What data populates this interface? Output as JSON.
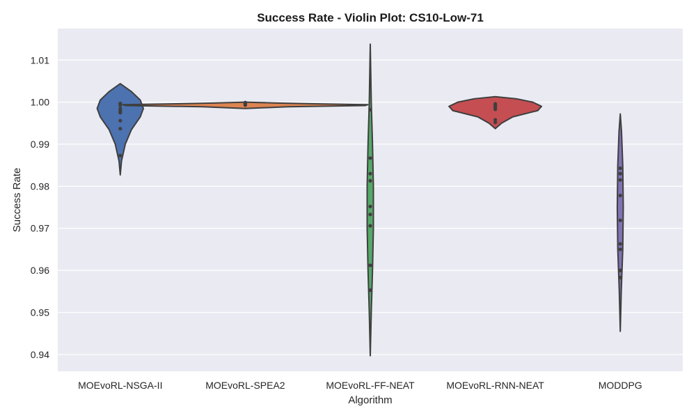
{
  "chart_data": {
    "type": "violin",
    "title": "Success Rate - Violin Plot: CS10-Low-71",
    "xlabel": "Algorithm",
    "ylabel": "Success Rate",
    "ylim": [
      0.936,
      1.0175
    ],
    "yticks": [
      0.94,
      0.95,
      0.96,
      0.97,
      0.98,
      0.99,
      1.0,
      1.01
    ],
    "ytick_labels": [
      "0.94",
      "0.95",
      "0.96",
      "0.97",
      "0.98",
      "0.99",
      "1.00",
      "1.01"
    ],
    "grid": true,
    "background": "#eaeaf2",
    "categories": [
      "MOEvoRL-NSGA-II",
      "MOEvoRL-SPEA2",
      "MOEvoRL-FF-NEAT",
      "MOEvoRL-RNN-NEAT",
      "MODDPG"
    ],
    "series": [
      {
        "color": "#4c72b0",
        "range": [
          0.9827,
          1.0044
        ],
        "points": [
          0.9997,
          0.9993,
          0.9985,
          0.998,
          0.9977,
          0.9975,
          0.9956,
          0.9937,
          0.9873
        ],
        "profile": [
          [
            0.9827,
            0.0
          ],
          [
            0.986,
            0.01
          ],
          [
            0.99,
            0.04
          ],
          [
            0.9935,
            0.09
          ],
          [
            0.9965,
            0.16
          ],
          [
            0.9985,
            0.185
          ],
          [
            1.0005,
            0.16
          ],
          [
            1.0025,
            0.09
          ],
          [
            1.0044,
            0.0
          ]
        ]
      },
      {
        "color": "#dd8452",
        "range": [
          0.9985,
          1.0
        ],
        "points": [
          0.9999,
          0.9997,
          0.9996,
          0.9994,
          0.9993
        ],
        "profile": [
          [
            0.9985,
            0.0
          ],
          [
            0.9989,
            0.34
          ],
          [
            0.9992,
            0.96
          ],
          [
            0.9994,
            0.98
          ],
          [
            0.9996,
            0.55
          ],
          [
            0.9998,
            0.25
          ],
          [
            1.0,
            0.0
          ]
        ]
      },
      {
        "color": "#55a868",
        "range": [
          0.9397,
          1.0138
        ],
        "points": [
          0.9982,
          0.9867,
          0.983,
          0.9813,
          0.9752,
          0.9733,
          0.9706,
          0.9612,
          0.9553
        ],
        "profile": [
          [
            0.9397,
            0.0
          ],
          [
            0.95,
            0.008
          ],
          [
            0.96,
            0.018
          ],
          [
            0.97,
            0.025
          ],
          [
            0.98,
            0.025
          ],
          [
            0.99,
            0.018
          ],
          [
            1.0,
            0.008
          ],
          [
            1.0138,
            0.0
          ]
        ]
      },
      {
        "color": "#c44e52",
        "range": [
          0.9937,
          1.0013
        ],
        "points": [
          0.9996,
          0.9993,
          0.999,
          0.9987,
          0.9983,
          0.9958,
          0.9952
        ],
        "profile": [
          [
            0.9937,
            0.0
          ],
          [
            0.995,
            0.05
          ],
          [
            0.9965,
            0.14
          ],
          [
            0.998,
            0.34
          ],
          [
            0.999,
            0.37
          ],
          [
            1.0,
            0.3
          ],
          [
            1.0008,
            0.17
          ],
          [
            1.0013,
            0.0
          ]
        ]
      },
      {
        "color": "#8172b3",
        "range": [
          0.9455,
          0.9972
        ],
        "points": [
          0.9843,
          0.983,
          0.9815,
          0.9778,
          0.9719,
          0.9663,
          0.965,
          0.96,
          0.9583
        ],
        "profile": [
          [
            0.9455,
            0.0
          ],
          [
            0.955,
            0.008
          ],
          [
            0.965,
            0.02
          ],
          [
            0.975,
            0.024
          ],
          [
            0.985,
            0.02
          ],
          [
            0.993,
            0.01
          ],
          [
            0.9972,
            0.0
          ]
        ]
      }
    ]
  }
}
